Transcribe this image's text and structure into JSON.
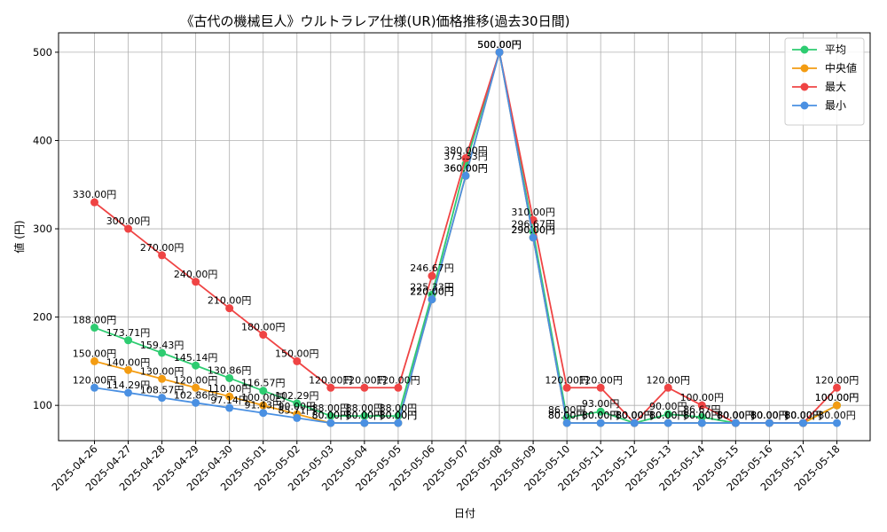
{
  "chart_data": {
    "type": "line",
    "title": "《古代の機械巨人》ウルトラレア仕様(UR)価格推移(過去30日間)",
    "xlabel": "日付",
    "ylabel": "値 (円)",
    "ylim": [
      60,
      522
    ],
    "yticks": [
      100,
      200,
      300,
      400,
      500
    ],
    "grid": true,
    "legend_position": "top-right",
    "value_suffix": "円",
    "categories": [
      "2025-04-26",
      "2025-04-27",
      "2025-04-28",
      "2025-04-29",
      "2025-04-30",
      "2025-05-01",
      "2025-05-02",
      "2025-05-03",
      "2025-05-04",
      "2025-05-05",
      "2025-05-06",
      "2025-05-07",
      "2025-05-08",
      "2025-05-09",
      "2025-05-10",
      "2025-05-11",
      "2025-05-12",
      "2025-05-13",
      "2025-05-14",
      "2025-05-15",
      "2025-05-16",
      "2025-05-17",
      "2025-05-18"
    ],
    "series": [
      {
        "name": "平均",
        "color": "#2ecc71",
        "values": [
          188.0,
          173.71,
          159.43,
          145.14,
          130.86,
          116.57,
          102.29,
          88.0,
          88.0,
          88.0,
          225.33,
          373.33,
          500.0,
          296.67,
          86.0,
          93.0,
          80.0,
          90.0,
          86.67,
          80.0,
          80.0,
          80.0,
          100.0
        ]
      },
      {
        "name": "中央値",
        "color": "#f39c12",
        "values": [
          150.0,
          140.0,
          130.0,
          120.0,
          110.0,
          100.0,
          90.0,
          80.0,
          80.0,
          80.0,
          220.0,
          360.0,
          500.0,
          290.0,
          80.0,
          80.0,
          80.0,
          80.0,
          80.0,
          80.0,
          80.0,
          80.0,
          100.0
        ]
      },
      {
        "name": "最大",
        "color": "#ef4444",
        "values": [
          330.0,
          300.0,
          270.0,
          240.0,
          210.0,
          180.0,
          150.0,
          120.0,
          120.0,
          120.0,
          246.67,
          380.0,
          500.0,
          310.0,
          120.0,
          120.0,
          80.0,
          120.0,
          100.0,
          80.0,
          80.0,
          80.0,
          120.0
        ]
      },
      {
        "name": "最小",
        "color": "#4a90e2",
        "values": [
          120.0,
          114.29,
          108.57,
          102.86,
          97.14,
          91.43,
          85.71,
          80.0,
          80.0,
          80.0,
          220.0,
          360.0,
          500.0,
          290.0,
          80.0,
          80.0,
          80.0,
          80.0,
          80.0,
          80.0,
          80.0,
          80.0,
          80.0
        ]
      }
    ]
  }
}
